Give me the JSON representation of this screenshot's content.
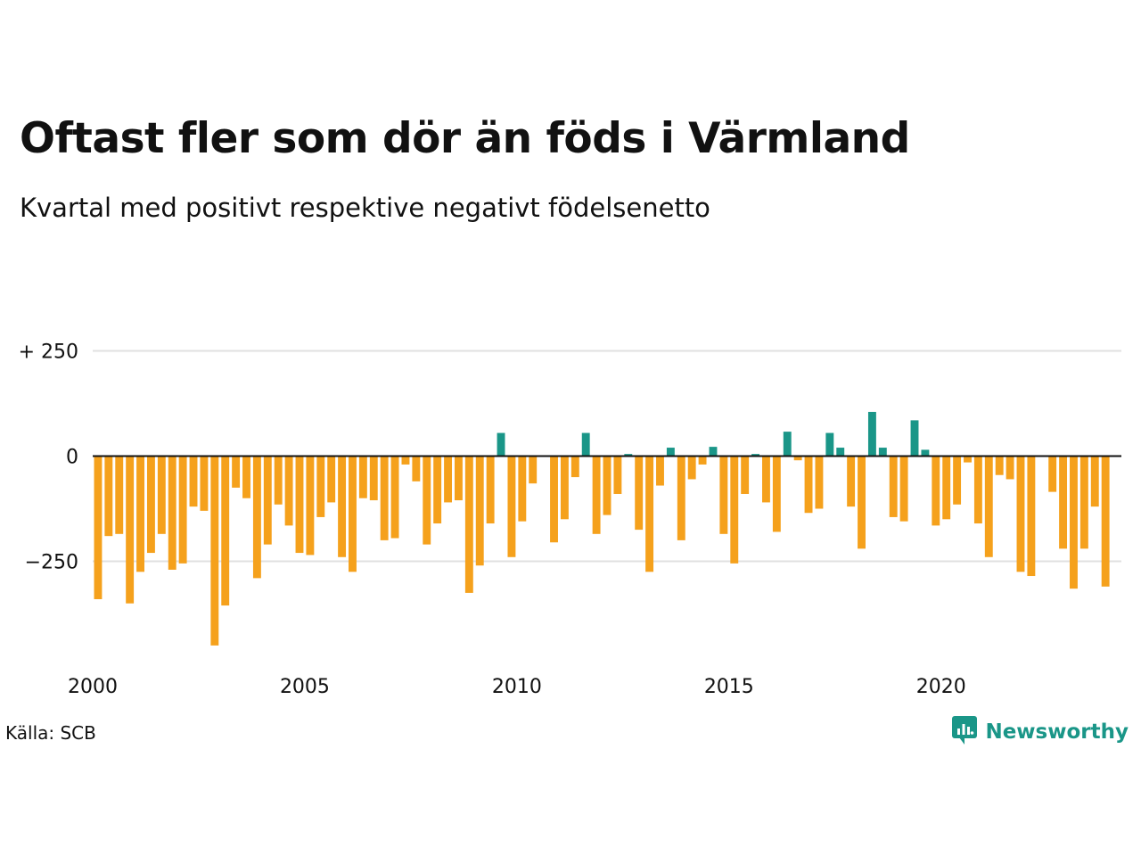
{
  "chart_data": {
    "type": "bar",
    "title": "Oftast fler som dör än föds i Värmland",
    "subtitle": "Kvartal med positivt respektive negativt födelsenetto",
    "xlabel": "",
    "ylabel": "",
    "x_start": 2000.0,
    "x_step": 0.25,
    "xlim": [
      2000,
      2024.25
    ],
    "ylim": [
      -450,
      300
    ],
    "y_ticks": [
      {
        "value": 250,
        "label": "+ 250"
      },
      {
        "value": 0,
        "label": "0"
      },
      {
        "value": -250,
        "label": "−250"
      }
    ],
    "x_ticks": [
      {
        "value": 2000,
        "label": "2000"
      },
      {
        "value": 2005,
        "label": "2005"
      },
      {
        "value": 2010,
        "label": "2010"
      },
      {
        "value": 2015,
        "label": "2015"
      },
      {
        "value": 2020,
        "label": "2020"
      }
    ],
    "grid": true,
    "colors": {
      "positive": "#1a9688",
      "negative": "#f5a11c",
      "grid": "#e0e0e0",
      "zero_line": "#111111"
    },
    "values": [
      -340,
      -190,
      -185,
      -350,
      -275,
      -230,
      -185,
      -270,
      -255,
      -120,
      -130,
      -450,
      -355,
      -75,
      -100,
      -290,
      -210,
      -115,
      -165,
      -230,
      -235,
      -145,
      -110,
      -240,
      -275,
      -100,
      -105,
      -200,
      -195,
      -20,
      -60,
      -210,
      -160,
      -110,
      -105,
      -325,
      -260,
      -160,
      55,
      -240,
      -155,
      -65,
      0,
      -205,
      -150,
      -50,
      55,
      -185,
      -140,
      -90,
      5,
      -175,
      -275,
      -70,
      20,
      -200,
      -55,
      -20,
      22,
      -185,
      -255,
      -90,
      5,
      -110,
      -180,
      58,
      -10,
      -135,
      -125,
      55,
      20,
      -120,
      -220,
      105,
      20,
      -145,
      -155,
      85,
      15,
      -165,
      -150,
      -115,
      -15,
      -160,
      -240,
      -45,
      -55,
      -275,
      -285,
      0,
      -85,
      -220,
      -315,
      -220,
      -120,
      -310
    ]
  },
  "source": "Källa: SCB",
  "logo": {
    "text": "Newsworthy",
    "icon": "newsworthy-chart-bubble-icon",
    "color": "#1a9688"
  }
}
